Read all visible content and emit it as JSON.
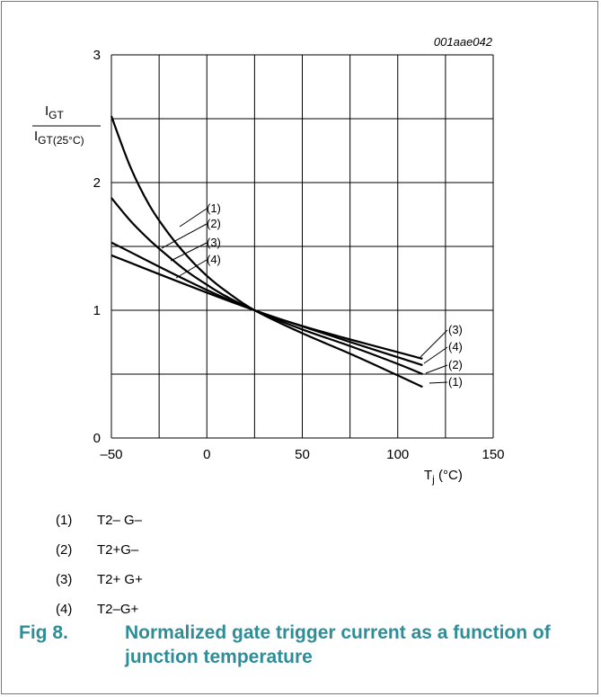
{
  "figure": {
    "id_code": "001aae042",
    "number": "Fig 8.",
    "caption": "Normalized gate trigger current as a function of junction temperature"
  },
  "chart_data": {
    "type": "line",
    "ylabel_main": "I",
    "ylabel_main_sub": "GT",
    "ylabel_denom": "I",
    "ylabel_denom_sub": "GT(25°C)",
    "xlabel_main": "T",
    "xlabel_sub": "j",
    "xlabel_unit": " (°C)",
    "xlim": [
      -50,
      150
    ],
    "ylim": [
      0,
      3
    ],
    "xticks": [
      "–50",
      "0",
      "50",
      "100",
      "150"
    ],
    "yticks": [
      "0",
      "1",
      "2",
      "3"
    ],
    "grid": true,
    "series": [
      {
        "name": "(1)",
        "x": [
          -50,
          -40,
          -30,
          -20,
          -10,
          0,
          10,
          25,
          50,
          75,
          100,
          113
        ],
        "y": [
          2.52,
          2.12,
          1.82,
          1.6,
          1.42,
          1.27,
          1.15,
          1.0,
          0.82,
          0.66,
          0.49,
          0.4
        ]
      },
      {
        "name": "(2)",
        "x": [
          -50,
          -40,
          -30,
          -20,
          -10,
          0,
          10,
          25,
          50,
          75,
          100,
          113
        ],
        "y": [
          1.88,
          1.7,
          1.55,
          1.42,
          1.3,
          1.2,
          1.11,
          1.0,
          0.85,
          0.72,
          0.58,
          0.5
        ]
      },
      {
        "name": "(3)",
        "x": [
          -50,
          25,
          113
        ],
        "y": [
          1.53,
          1.0,
          0.62
        ]
      },
      {
        "name": "(4)",
        "x": [
          -50,
          25,
          113
        ],
        "y": [
          1.43,
          1.0,
          0.57
        ]
      }
    ],
    "line_labels": {
      "left": [
        "(1)",
        "(2)",
        "(3)",
        "(4)"
      ],
      "right": [
        "(3)",
        "(4)",
        "(2)",
        "(1)"
      ]
    }
  },
  "legend": [
    {
      "num": "(1)",
      "text": "T2– G–"
    },
    {
      "num": "(2)",
      "text": "T2+G–"
    },
    {
      "num": "(3)",
      "text": "T2+ G+"
    },
    {
      "num": "(4)",
      "text": "T2–G+"
    }
  ],
  "colors": {
    "frame": "#3f8f94",
    "caption": "#2f8d97",
    "line": "#000000"
  }
}
